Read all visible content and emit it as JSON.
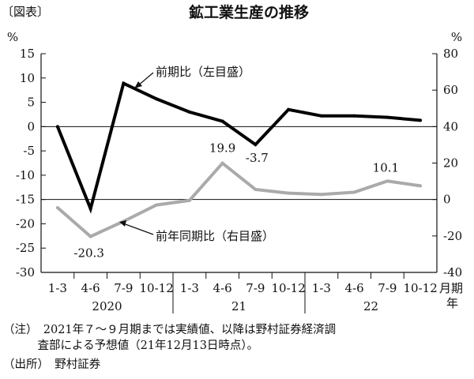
{
  "figure_label": "〔図表〕",
  "notes": [
    "（注）　2021年７～９月期までは実績値、以降は野村証券経済調",
    "　　　査部による予想値（21年12月13日時点）。",
    "（出所）　野村証券"
  ],
  "chart_data": {
    "type": "line",
    "title": "鉱工業生産の推移",
    "categories": [
      "1-3",
      "4-6",
      "7-9",
      "10-12",
      "1-3",
      "4-6",
      "7-9",
      "10-12",
      "1-3",
      "4-6",
      "7-9",
      "10-12"
    ],
    "year_groups": [
      {
        "label": "2020",
        "start": 0,
        "end": 3
      },
      {
        "label": "21",
        "start": 4,
        "end": 7
      },
      {
        "label": "22",
        "start": 8,
        "end": 11
      }
    ],
    "x_unit_label": "月期\n年",
    "left_axis": {
      "unit": "%",
      "ylim": [
        -30,
        15
      ],
      "ticks": [
        15,
        10,
        5,
        0,
        -5,
        -10,
        -15,
        -20,
        -25,
        -30
      ]
    },
    "right_axis": {
      "unit": "%",
      "ylim": [
        -40,
        80
      ],
      "ticks": [
        80,
        60,
        40,
        20,
        0,
        -20,
        -40
      ]
    },
    "reference_lines": [
      {
        "axis": "left",
        "value": 0
      },
      {
        "axis": "right",
        "value": 0
      }
    ],
    "series": [
      {
        "name": "前期比（左目盛）",
        "axis": "left",
        "color": "#000000",
        "values": [
          0.0,
          -16.9,
          8.9,
          5.7,
          3.0,
          1.1,
          -3.7,
          3.5,
          2.2,
          2.2,
          1.9,
          1.3
        ],
        "data_labels": [
          {
            "index": 6,
            "text": "-3.7"
          }
        ]
      },
      {
        "name": "前年同期比（右目盛）",
        "axis": "right",
        "color": "#aaaaaa",
        "values": [
          -4.5,
          -20.3,
          -12.0,
          -3.0,
          -0.5,
          19.9,
          5.5,
          3.5,
          2.8,
          4.0,
          10.1,
          7.5
        ],
        "data_labels": [
          {
            "index": 1,
            "text": "-20.3"
          },
          {
            "index": 5,
            "text": "19.9"
          },
          {
            "index": 10,
            "text": "10.1"
          }
        ]
      }
    ]
  }
}
